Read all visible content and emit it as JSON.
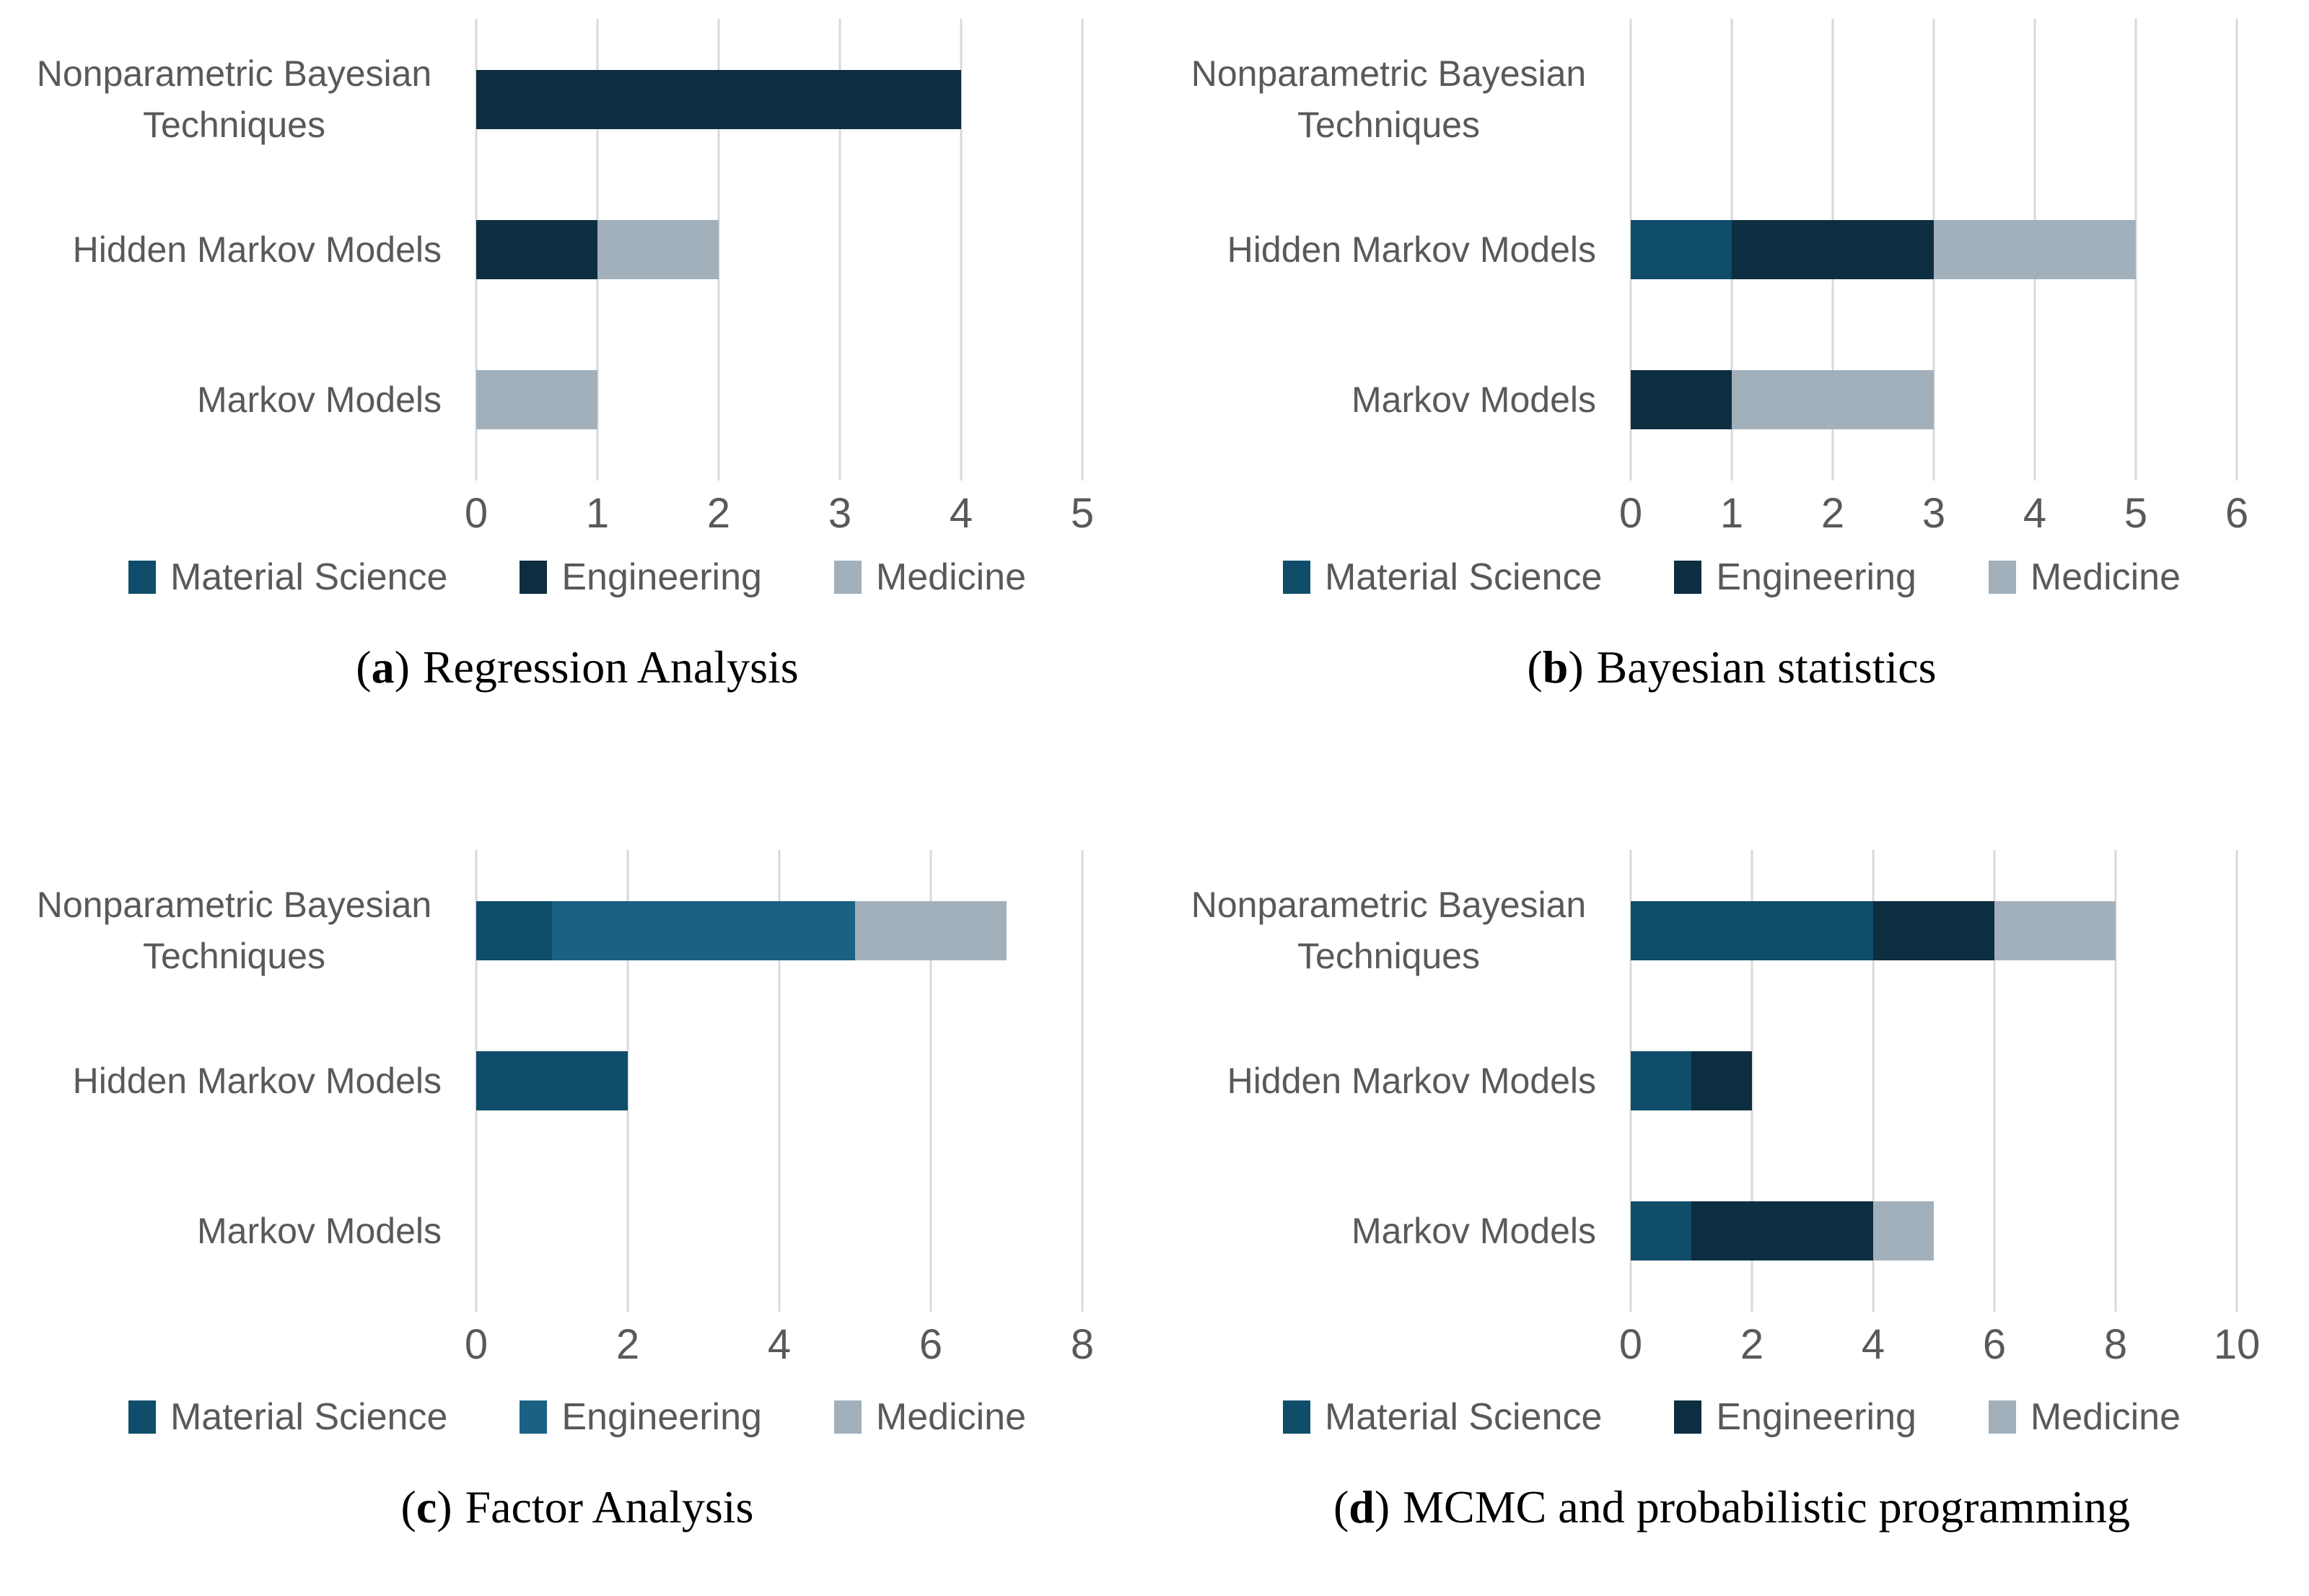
{
  "strings": {
    "open_paren": "(",
    "close_paren": ")"
  },
  "colors": {
    "background": "#ffffff",
    "gridline": "#d9d9d9",
    "axis_text": "#595959",
    "category_text": "#595959",
    "legend_text": "#595959",
    "caption_text": "#000000"
  },
  "chart_data": [
    {
      "id": "a",
      "type": "bar",
      "orientation": "horizontal",
      "stacked": true,
      "grid": "vertical",
      "legend_position": "bottom",
      "caption_letter": "a",
      "caption_text": "Regression Analysis",
      "categories": [
        "Nonparametric Bayesian Techniques",
        "Hidden Markov Models",
        "Markov Models"
      ],
      "xlim": [
        0,
        5
      ],
      "ticks": [
        0,
        1,
        2,
        3,
        4,
        5
      ],
      "series": [
        {
          "name": "Material Science",
          "color": "#0f4d6b",
          "values": [
            0,
            0,
            0
          ]
        },
        {
          "name": "Engineering",
          "color": "#0d2e40",
          "values": [
            4,
            1,
            0
          ]
        },
        {
          "name": "Medicine",
          "color": "#a2b0bc",
          "values": [
            0,
            1,
            1
          ]
        }
      ]
    },
    {
      "id": "b",
      "type": "bar",
      "orientation": "horizontal",
      "stacked": true,
      "grid": "vertical",
      "legend_position": "bottom",
      "caption_letter": "b",
      "caption_text": "Bayesian statistics",
      "categories": [
        "Nonparametric Bayesian Techniques",
        "Hidden Markov Models",
        "Markov Models"
      ],
      "xlim": [
        0,
        6
      ],
      "ticks": [
        0,
        1,
        2,
        3,
        4,
        5,
        6
      ],
      "series": [
        {
          "name": "Material Science",
          "color": "#0f4d6b",
          "values": [
            0,
            1,
            0
          ]
        },
        {
          "name": "Engineering",
          "color": "#0d2e40",
          "values": [
            0,
            2,
            1
          ]
        },
        {
          "name": "Medicine",
          "color": "#a2b0bc",
          "values": [
            0,
            2,
            2
          ]
        }
      ]
    },
    {
      "id": "c",
      "type": "bar",
      "orientation": "horizontal",
      "stacked": true,
      "grid": "vertical",
      "legend_position": "bottom",
      "caption_letter": "c",
      "caption_text": "Factor Analysis",
      "categories": [
        "Nonparametric Bayesian Techniques",
        "Hidden Markov Models",
        "Markov Models"
      ],
      "xlim": [
        0,
        8
      ],
      "ticks": [
        0,
        2,
        4,
        6,
        8
      ],
      "series": [
        {
          "name": "Material Science",
          "color": "#0f4d6b",
          "values": [
            1,
            2,
            0
          ]
        },
        {
          "name": "Engineering",
          "color": "#1a6183",
          "values": [
            4,
            0,
            0
          ]
        },
        {
          "name": "Medicine",
          "color": "#a2b0bc",
          "values": [
            2,
            0,
            0
          ]
        }
      ]
    },
    {
      "id": "d",
      "type": "bar",
      "orientation": "horizontal",
      "stacked": true,
      "grid": "vertical",
      "legend_position": "bottom",
      "caption_letter": "d",
      "caption_text": "MCMC and probabilistic programming",
      "categories": [
        "Nonparametric Bayesian Techniques",
        "Hidden Markov Models",
        "Markov Models"
      ],
      "xlim": [
        0,
        10
      ],
      "ticks": [
        0,
        2,
        4,
        6,
        8,
        10
      ],
      "series": [
        {
          "name": "Material Science",
          "color": "#0f4d6b",
          "values": [
            4,
            1,
            1
          ]
        },
        {
          "name": "Engineering",
          "color": "#0d2e40",
          "values": [
            2,
            1,
            3
          ]
        },
        {
          "name": "Medicine",
          "color": "#a2b0bc",
          "values": [
            2,
            0,
            1
          ]
        }
      ]
    }
  ]
}
